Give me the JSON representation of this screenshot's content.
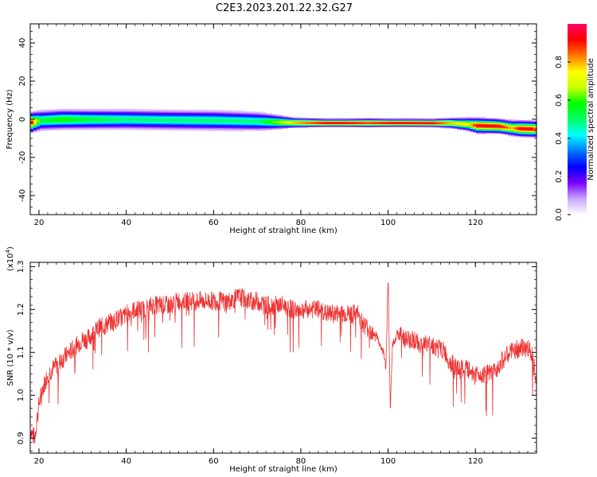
{
  "figure": {
    "title": "C2E3.2023.201.22.32.G27"
  },
  "colors": {
    "snr_line": "#ee3333",
    "axis": "#000000",
    "background": "#ffffff",
    "colormap": [
      "#ffffff",
      "#c9a6ff",
      "#7a00ff",
      "#0000ff",
      "#0077ff",
      "#00ffff",
      "#00ff66",
      "#00ff00",
      "#ccff00",
      "#ffff00",
      "#ff7700",
      "#ff0000",
      "#ff0066"
    ]
  },
  "chart_data": [
    {
      "type": "heatmap",
      "title": "C2E3.2023.201.22.32.G27",
      "xlabel": "Height of straight line (km)",
      "ylabel": "Frequency (Hz)",
      "xlim": [
        18,
        134
      ],
      "ylim": [
        -50,
        50
      ],
      "x_ticks": [
        20,
        40,
        60,
        80,
        100,
        120
      ],
      "y_ticks": [
        -40,
        -20,
        0,
        20,
        40
      ],
      "colorbar": {
        "label": "Normalized spectral amplitude",
        "range": [
          0,
          1
        ],
        "ticks": [
          "0.0",
          "0.2",
          "0.4",
          "0.6",
          "0.8"
        ]
      },
      "ridge": {
        "height_km": [
          18,
          20,
          25,
          30,
          40,
          50,
          60,
          70,
          78,
          85,
          90,
          95,
          100,
          105,
          110,
          114,
          118,
          120,
          125,
          128,
          130,
          133,
          134
        ],
        "center_freq_hz": [
          -1.5,
          -0.5,
          0,
          0,
          0,
          -0.3,
          -0.5,
          -1,
          -1.7,
          -1.8,
          -1.8,
          -1.8,
          -1.8,
          -1.8,
          -1.9,
          -1.9,
          -2.5,
          -3.2,
          -3.5,
          -4.5,
          -4.8,
          -5,
          -5.2
        ],
        "half_width_hz": [
          3,
          3,
          3,
          3,
          3,
          3,
          3,
          2.8,
          1.5,
          1.2,
          1.2,
          1.3,
          1.2,
          1.2,
          1.2,
          1.5,
          2,
          2.3,
          2.2,
          2.3,
          2.4,
          2.4,
          2.5
        ],
        "peak_amplitude": [
          0.9,
          0.55,
          0.6,
          0.55,
          0.5,
          0.5,
          0.5,
          0.5,
          0.8,
          0.95,
          0.95,
          0.9,
          0.95,
          0.95,
          0.95,
          0.8,
          0.75,
          0.95,
          0.95,
          0.8,
          0.95,
          0.95,
          0.7
        ]
      }
    },
    {
      "type": "line",
      "xlabel": "Height of straight line (km)",
      "ylabel": "SNR (10 * v/v)",
      "y_multiplier": "(x10",
      "y_multiplier_exp": "4",
      "y_multiplier_close": ")",
      "xlim": [
        18,
        134
      ],
      "ylim": [
        0.865,
        1.31
      ],
      "x_ticks": [
        20,
        40,
        60,
        80,
        100,
        120
      ],
      "y_ticks": [
        "0.9",
        "1.0",
        "1.1",
        "1.2",
        "1.3"
      ],
      "series": [
        {
          "x": [
            18,
            19,
            20,
            21,
            22,
            23,
            24,
            25,
            26,
            27,
            28,
            29,
            30,
            31,
            32,
            33,
            34,
            35,
            36,
            37,
            38,
            39,
            40,
            42,
            44,
            46,
            48,
            50,
            52,
            54,
            56,
            58,
            60,
            62,
            64,
            66,
            68,
            70,
            72,
            74,
            76,
            78,
            80,
            82,
            84,
            86,
            88,
            90,
            92,
            93,
            94,
            95,
            96,
            97,
            98,
            99,
            99.5,
            100,
            100.5,
            101,
            102,
            103,
            104,
            105,
            106,
            107,
            108,
            109,
            110,
            111,
            112,
            113,
            114,
            115,
            116,
            118,
            120,
            122,
            124,
            126,
            128,
            130,
            132,
            133,
            134
          ],
          "y": [
            0.92,
            0.9,
            0.98,
            1.02,
            1.05,
            1.06,
            1.07,
            1.08,
            1.09,
            1.1,
            1.11,
            1.12,
            1.13,
            1.13,
            1.14,
            1.15,
            1.16,
            1.16,
            1.17,
            1.17,
            1.18,
            1.18,
            1.19,
            1.2,
            1.2,
            1.21,
            1.21,
            1.21,
            1.22,
            1.22,
            1.22,
            1.22,
            1.22,
            1.22,
            1.22,
            1.23,
            1.22,
            1.22,
            1.21,
            1.21,
            1.21,
            1.2,
            1.2,
            1.2,
            1.2,
            1.19,
            1.19,
            1.19,
            1.19,
            1.19,
            1.17,
            1.16,
            1.15,
            1.15,
            1.12,
            1.1,
            1.06,
            1.28,
            0.96,
            1.12,
            1.14,
            1.14,
            1.13,
            1.13,
            1.13,
            1.12,
            1.12,
            1.12,
            1.12,
            1.11,
            1.11,
            1.1,
            1.08,
            1.07,
            1.06,
            1.06,
            1.05,
            1.05,
            1.05,
            1.08,
            1.1,
            1.11,
            1.11,
            1.1,
            1.04
          ]
        }
      ]
    }
  ]
}
